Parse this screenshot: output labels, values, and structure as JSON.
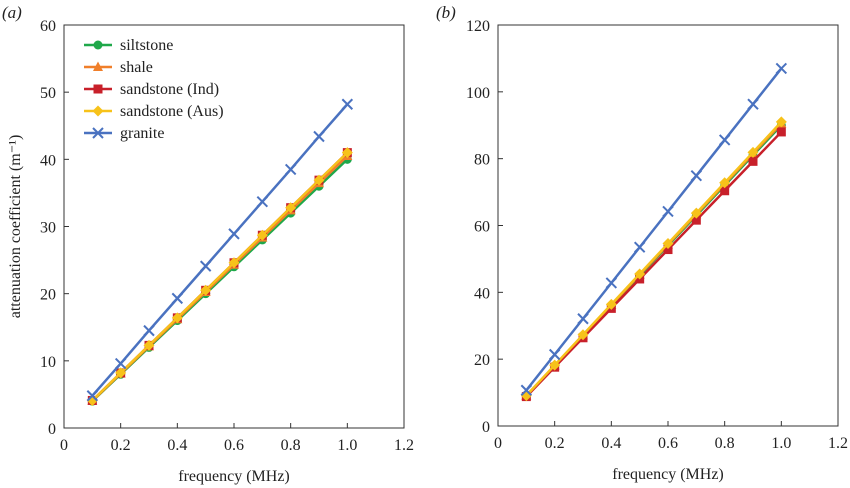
{
  "chart_data": [
    {
      "type": "line",
      "panel_label": "(a)",
      "xlabel": "frequency (MHz)",
      "ylabel": "attenuation coefficient (m⁻¹)",
      "xlim": [
        0,
        1.2
      ],
      "ylim": [
        0,
        60
      ],
      "xticks": [
        "0",
        "0.2",
        "0.4",
        "0.6",
        "0.8",
        "1.0",
        "1.2"
      ],
      "yticks": [
        "0",
        "10",
        "20",
        "30",
        "40",
        "50",
        "60"
      ],
      "grid": false,
      "legend": "top-left",
      "x": [
        0.1,
        0.2,
        0.3,
        0.4,
        0.5,
        0.6,
        0.7,
        0.8,
        0.9,
        1.0
      ],
      "series": [
        {
          "name": "siltstone",
          "color": "#1fa84a",
          "marker": "circle",
          "values": [
            4,
            8,
            12,
            16,
            20,
            24,
            28,
            32,
            36,
            40
          ]
        },
        {
          "name": "shale",
          "color": "#f07f2a",
          "marker": "triangle",
          "values": [
            4.05,
            8.1,
            12.15,
            16.2,
            20.25,
            24.3,
            28.35,
            32.4,
            36.45,
            40.5
          ]
        },
        {
          "name": "sandstone (Ind)",
          "color": "#c8202a",
          "marker": "square",
          "values": [
            4.1,
            8.2,
            12.3,
            16.4,
            20.5,
            24.6,
            28.7,
            32.8,
            36.9,
            41
          ]
        },
        {
          "name": "sandstone (Aus)",
          "color": "#f7c21a",
          "marker": "diamond",
          "values": [
            4.1,
            8.2,
            12.3,
            16.4,
            20.5,
            24.6,
            28.7,
            32.8,
            36.9,
            41
          ]
        },
        {
          "name": "granite",
          "color": "#4a72c0",
          "marker": "x",
          "values": [
            4.8,
            9.6,
            14.5,
            19.3,
            24.1,
            28.9,
            33.7,
            38.5,
            43.4,
            48.2
          ]
        }
      ]
    },
    {
      "type": "line",
      "panel_label": "(b)",
      "xlabel": "frequency (MHz)",
      "ylabel": "",
      "xlim": [
        0,
        1.2
      ],
      "ylim": [
        0,
        120
      ],
      "xticks": [
        "0",
        "0.2",
        "0.4",
        "0.6",
        "0.8",
        "1.0",
        "1.2"
      ],
      "yticks": [
        "0",
        "20",
        "40",
        "60",
        "80",
        "100",
        "120"
      ],
      "grid": false,
      "x": [
        0.1,
        0.2,
        0.3,
        0.4,
        0.5,
        0.6,
        0.7,
        0.8,
        0.9,
        1.0
      ],
      "series": [
        {
          "name": "siltstone",
          "color": "#1fa84a",
          "marker": "circle",
          "values": [
            9,
            18,
            27,
            36,
            45,
            54,
            63,
            72,
            81,
            90
          ]
        },
        {
          "name": "shale",
          "color": "#f07f2a",
          "marker": "triangle",
          "values": [
            9.05,
            18.1,
            27.15,
            36.2,
            45.25,
            54.3,
            63.35,
            72.4,
            81.45,
            90.5
          ]
        },
        {
          "name": "sandstone (Ind)",
          "color": "#c8202a",
          "marker": "square",
          "values": [
            8.8,
            17.6,
            26.4,
            35.2,
            44,
            52.8,
            61.6,
            70.4,
            79.2,
            88
          ]
        },
        {
          "name": "sandstone (Aus)",
          "color": "#f7c21a",
          "marker": "diamond",
          "values": [
            9.1,
            18.2,
            27.3,
            36.4,
            45.5,
            54.6,
            63.7,
            72.8,
            81.9,
            91
          ]
        },
        {
          "name": "granite",
          "color": "#4a72c0",
          "marker": "x",
          "values": [
            10.7,
            21.4,
            32.1,
            42.8,
            53.5,
            64.2,
            74.9,
            85.6,
            96.3,
            107
          ]
        }
      ]
    }
  ]
}
